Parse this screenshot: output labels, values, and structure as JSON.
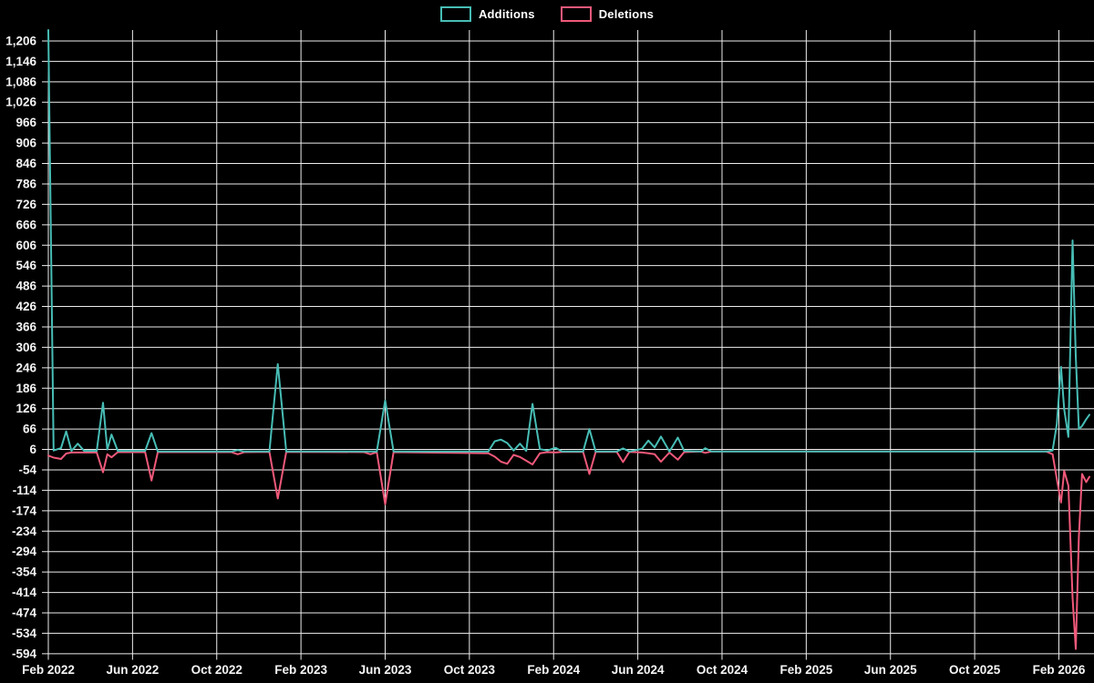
{
  "colors": {
    "background": "#000000",
    "grid": "#ededed",
    "axis_text": "#f5f5f5",
    "additions": "#47bdb5",
    "deletions": "#f0597a"
  },
  "legend": {
    "items": [
      {
        "label": "Additions",
        "color": "#47bdb5"
      },
      {
        "label": "Deletions",
        "color": "#f0597a"
      }
    ]
  },
  "chart_data": {
    "type": "line",
    "title": "",
    "xlabel": "",
    "ylabel": "",
    "grid": true,
    "legend_position": "top-center",
    "x_axis": {
      "unit": "months since Feb 2022",
      "tick_labels": [
        "Feb 2022",
        "Jun 2022",
        "Oct 2022",
        "Feb 2023",
        "Jun 2023",
        "Oct 2023",
        "Feb 2024",
        "Jun 2024",
        "Oct 2024",
        "Feb 2025",
        "Jun 2025",
        "Oct 2025",
        "Feb 2026"
      ],
      "months_per_gridline": 4
    },
    "y_axis": {
      "tick_values": [
        1206,
        1146,
        1086,
        1026,
        966,
        906,
        846,
        786,
        726,
        666,
        606,
        546,
        486,
        426,
        366,
        306,
        246,
        186,
        126,
        66,
        6,
        -54,
        -114,
        -174,
        -234,
        -294,
        -354,
        -414,
        -474,
        -534,
        -594
      ],
      "tick_labels": [
        "1,206",
        "1,146",
        "1,086",
        "1,026",
        "966",
        "906",
        "846",
        "786",
        "726",
        "666",
        "606",
        "546",
        "486",
        "426",
        "366",
        "306",
        "246",
        "186",
        "126",
        "66",
        "6",
        "-54",
        "-114",
        "-174",
        "-234",
        "-294",
        "-354",
        "-414",
        "-474",
        "-534",
        "-594"
      ],
      "step": 60
    },
    "x_months": [
      0,
      0.25,
      0.6,
      0.85,
      1.1,
      1.4,
      1.7,
      2.3,
      2.6,
      2.8,
      3.0,
      3.3,
      4.6,
      4.9,
      5.2,
      8.7,
      9.0,
      9.3,
      10.5,
      10.9,
      11.3,
      15.0,
      15.3,
      15.6,
      16.0,
      16.4,
      20.9,
      21.2,
      21.5,
      21.8,
      22.1,
      22.4,
      22.7,
      23.0,
      23.35,
      23.7,
      24.1,
      24.4,
      25.4,
      25.7,
      26.0,
      27.0,
      27.3,
      27.6,
      28.2,
      28.5,
      28.8,
      29.1,
      29.5,
      29.9,
      30.2,
      31.0,
      31.2,
      31.5,
      47.4,
      47.7,
      47.9,
      48.1,
      48.25,
      48.45,
      48.65,
      48.8,
      48.95,
      49.1,
      49.3,
      49.45
    ],
    "series": [
      {
        "name": "Additions",
        "color": "#47bdb5",
        "values": [
          1238,
          3,
          10,
          59,
          2,
          23,
          2,
          2,
          143,
          6,
          50,
          2,
          2,
          54,
          0,
          0,
          4,
          0,
          0,
          257,
          0,
          0,
          0,
          0,
          150,
          0,
          0,
          30,
          35,
          25,
          3,
          23,
          2,
          140,
          7,
          3,
          11,
          0,
          0,
          66,
          0,
          0,
          9,
          0,
          8,
          32,
          12,
          44,
          0,
          41,
          2,
          0,
          10,
          0,
          0,
          3,
          80,
          249,
          124,
          43,
          620,
          280,
          66,
          75,
          95,
          108
        ]
      },
      {
        "name": "Deletions",
        "color": "#f0597a",
        "values": [
          -12,
          -18,
          -22,
          -6,
          -3,
          -3,
          -3,
          -3,
          -61,
          -8,
          -17,
          -2,
          -2,
          -85,
          -2,
          -2,
          -8,
          -2,
          -1,
          -138,
          -1,
          -2,
          -8,
          -2,
          -155,
          -2,
          -5,
          -15,
          -30,
          -36,
          -10,
          -16,
          -27,
          -38,
          -5,
          -2,
          -3,
          -1,
          -1,
          -66,
          -1,
          -1,
          -31,
          -1,
          -3,
          -5,
          -8,
          -30,
          -3,
          -24,
          -2,
          0,
          -4,
          0,
          0,
          -8,
          -80,
          -150,
          -57,
          -100,
          -430,
          -580,
          -250,
          -66,
          -90,
          -74
        ]
      }
    ]
  }
}
